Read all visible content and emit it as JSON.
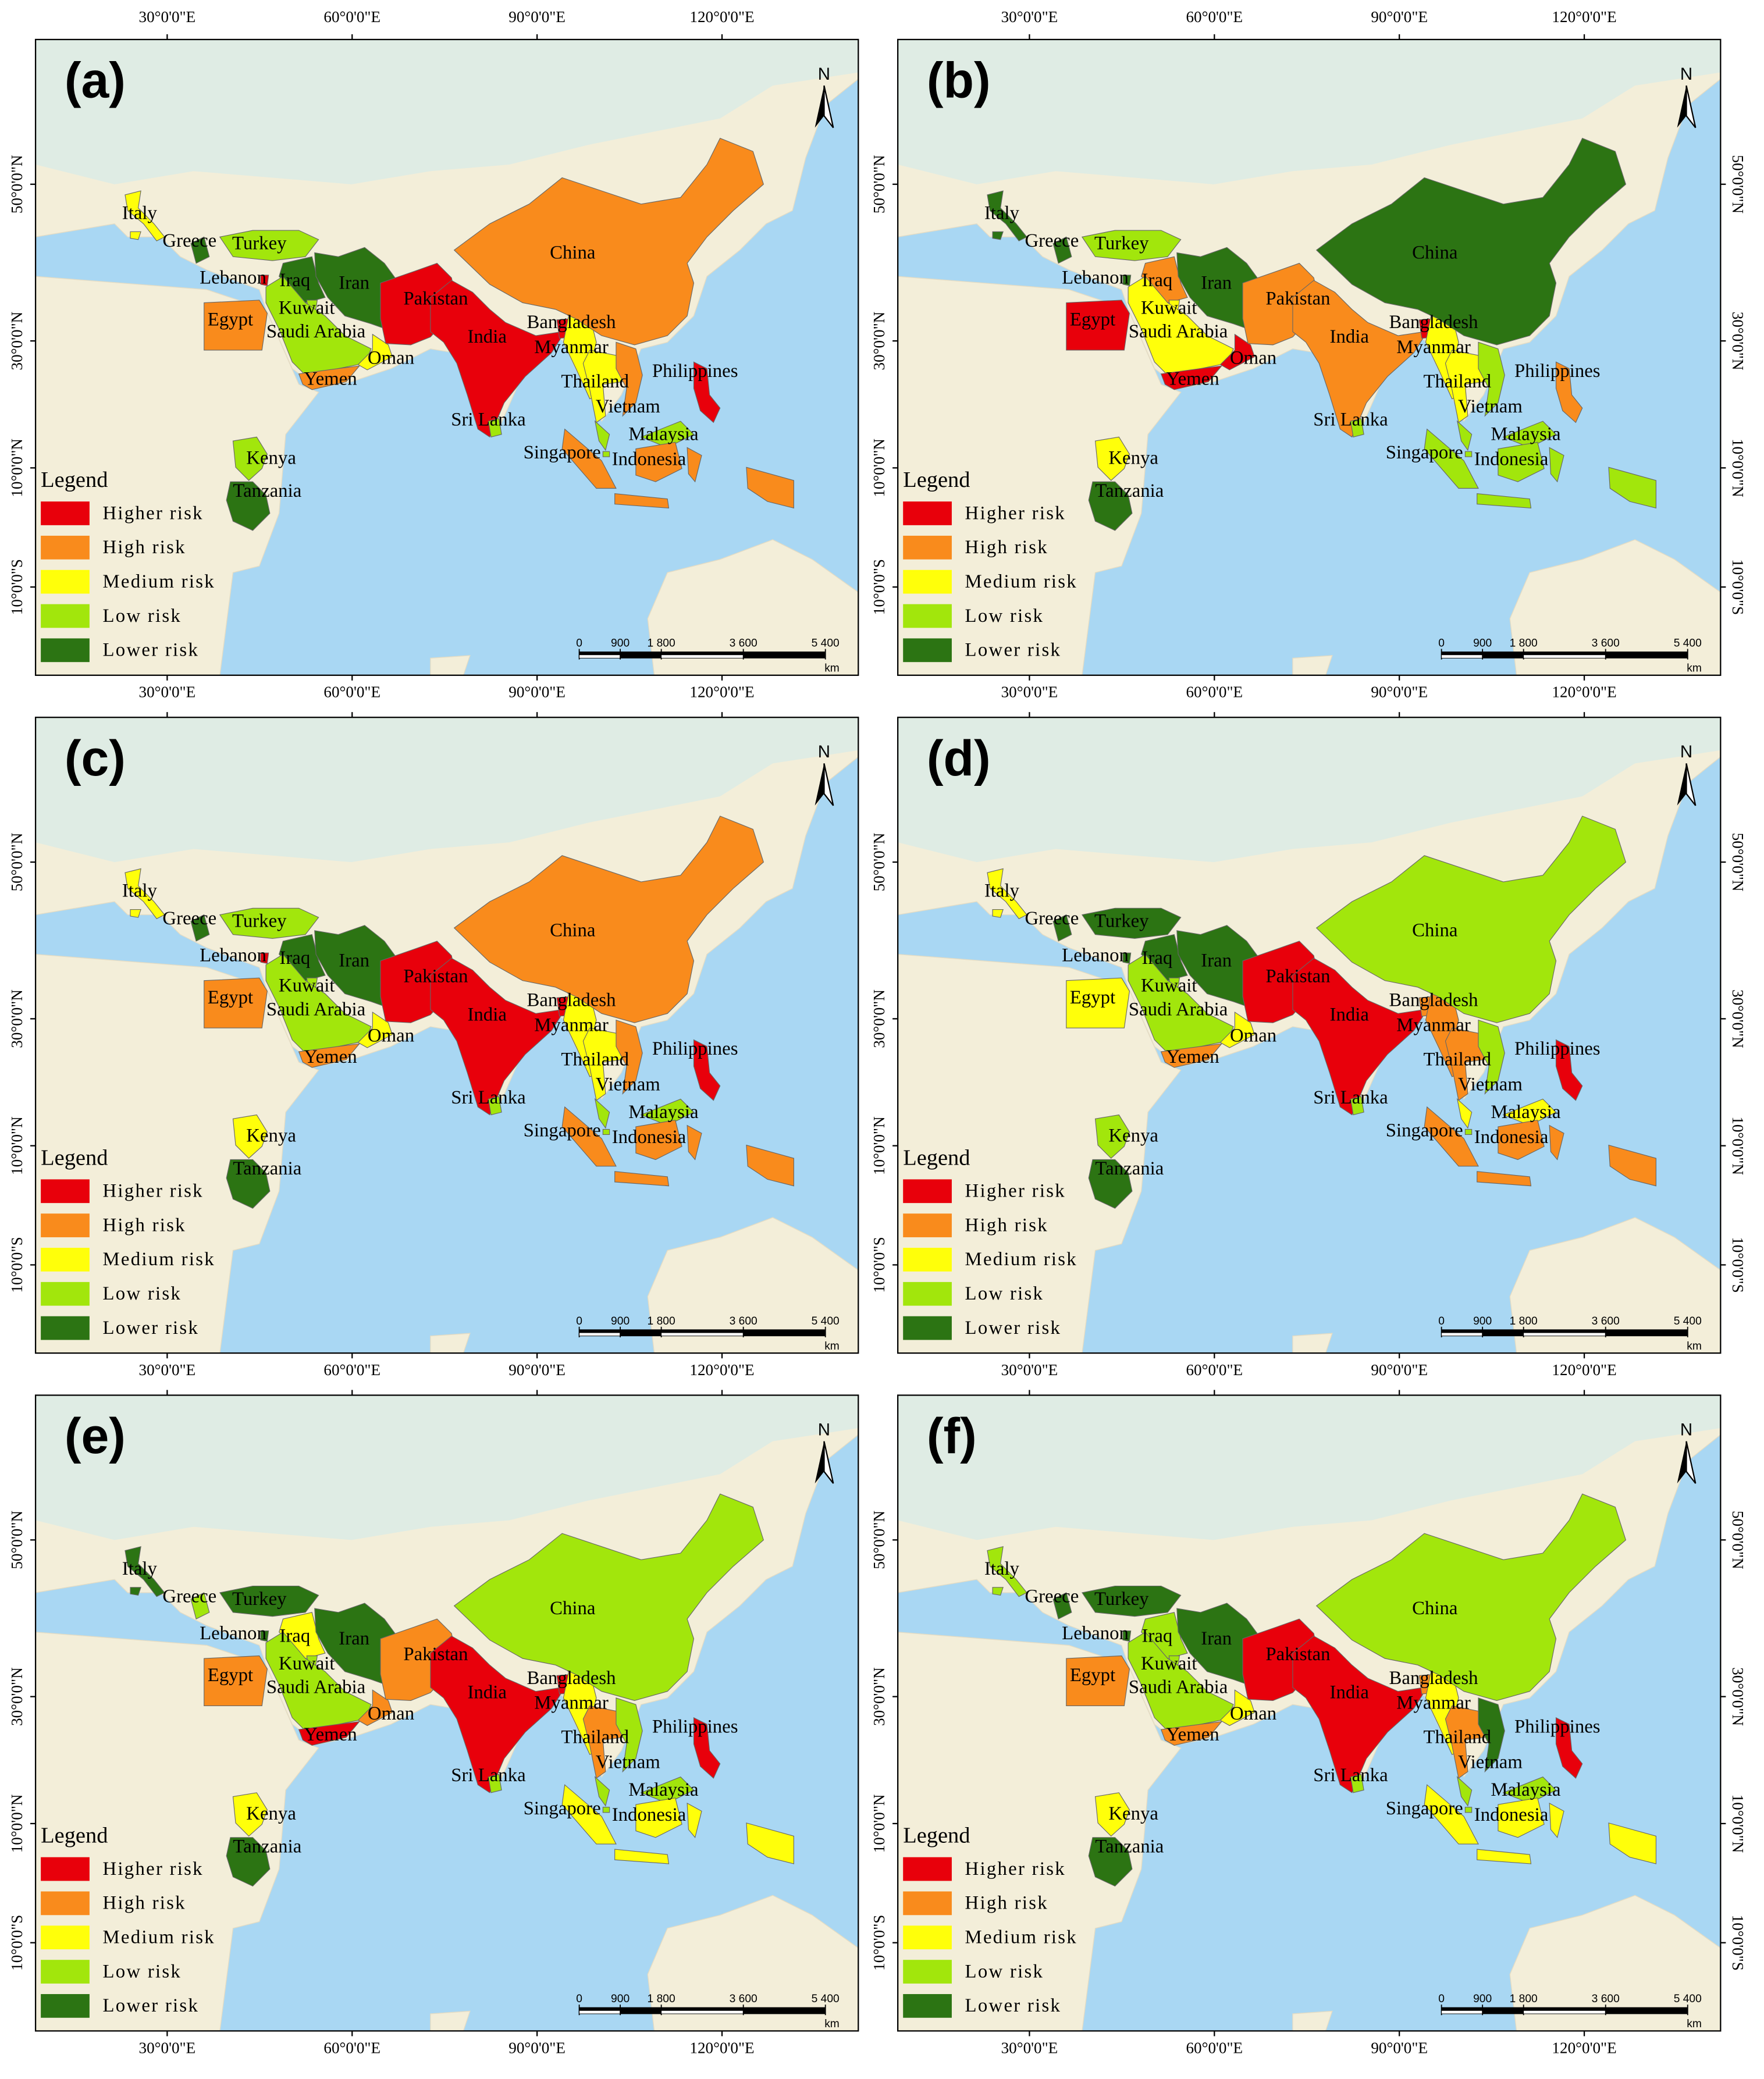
{
  "figure": {
    "lon_ticks": [
      {
        "value": 30,
        "label": "30°0'0\"E"
      },
      {
        "value": 60,
        "label": "60°0'0\"E"
      },
      {
        "value": 90,
        "label": "90°0'0\"E"
      },
      {
        "value": 120,
        "label": "120°0'0\"E"
      }
    ],
    "lat_ticks": [
      {
        "value": 50,
        "label": "50°0'0\"N"
      },
      {
        "value": 30,
        "label": "30°0'0\"N"
      },
      {
        "value": 10,
        "label": "10°0'0\"N"
      },
      {
        "value": -10,
        "label": "10°0'0\"S"
      }
    ],
    "north": "N",
    "legend_title": "Legend",
    "risk_levels": [
      {
        "label": "Higher risk",
        "color": "#e8000b"
      },
      {
        "label": "High risk",
        "color": "#f98b1c"
      },
      {
        "label": "Medium risk",
        "color": "#ffff0a"
      },
      {
        "label": "Low risk",
        "color": "#a2e60c"
      },
      {
        "label": "Lower risk",
        "color": "#2c7413"
      }
    ],
    "scale_ticks": [
      0,
      900,
      {
        "value": 1800,
        "label": "1 800"
      },
      {
        "value": 3600,
        "label": "3 600"
      },
      {
        "value": 5400,
        "label": "5 400"
      }
    ],
    "scale_unit": "km",
    "countries": [
      "Italy",
      "Greece",
      "Turkey",
      "Lebanon",
      "Iraq",
      "Iran",
      "Kuwait",
      "Egypt",
      "Saudi Arabia",
      "Oman",
      "Yemen",
      "Pakistan",
      "India",
      "Bangladesh",
      "Myanmar",
      "Sri Lanka",
      "Thailand",
      "Vietnam",
      "China",
      "Philippines",
      "Malaysia",
      "Singapore",
      "Indonesia",
      "Kenya",
      "Tanzania"
    ],
    "panels": [
      {
        "label": "(a)",
        "risk": [
          2,
          4,
          3,
          0,
          4,
          4,
          3,
          1,
          3,
          2,
          1,
          0,
          0,
          0,
          2,
          3,
          2,
          1,
          1,
          0,
          3,
          3,
          1,
          3,
          4
        ]
      },
      {
        "label": "(b)",
        "risk": [
          4,
          4,
          3,
          4,
          1,
          4,
          2,
          0,
          2,
          0,
          0,
          1,
          1,
          0,
          2,
          3,
          2,
          3,
          4,
          1,
          3,
          3,
          3,
          2,
          4
        ]
      },
      {
        "label": "(c)",
        "risk": [
          2,
          4,
          3,
          0,
          4,
          4,
          3,
          1,
          3,
          2,
          1,
          0,
          0,
          0,
          2,
          3,
          2,
          1,
          1,
          0,
          3,
          3,
          1,
          2,
          4
        ]
      },
      {
        "label": "(d)",
        "risk": [
          2,
          4,
          4,
          4,
          4,
          4,
          3,
          2,
          3,
          2,
          1,
          0,
          0,
          1,
          1,
          3,
          1,
          3,
          3,
          0,
          2,
          3,
          1,
          3,
          4
        ]
      },
      {
        "label": "(e)",
        "risk": [
          4,
          3,
          4,
          4,
          2,
          4,
          3,
          1,
          3,
          1,
          0,
          1,
          0,
          0,
          2,
          3,
          1,
          3,
          3,
          0,
          3,
          3,
          2,
          2,
          4
        ]
      },
      {
        "label": "(f)",
        "risk": [
          3,
          4,
          4,
          4,
          3,
          4,
          3,
          1,
          3,
          2,
          1,
          0,
          0,
          1,
          2,
          3,
          1,
          4,
          3,
          0,
          3,
          3,
          2,
          2,
          4
        ]
      }
    ]
  }
}
